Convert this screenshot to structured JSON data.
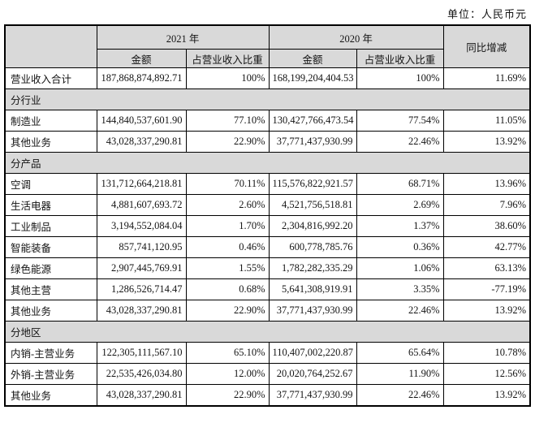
{
  "unit_label": "单位：人民币元",
  "table": {
    "col_headers": {
      "year_2021": "2021 年",
      "year_2020": "2020 年",
      "amount": "金额",
      "proportion": "占营业收入比重",
      "yoy": "同比增减"
    },
    "rows": [
      {
        "type": "data",
        "label": "营业收入合计",
        "a2021": "187,868,874,892.71",
        "p2021": "100%",
        "a2020": "168,199,204,404.53",
        "p2020": "100%",
        "yoy": "11.69%"
      },
      {
        "type": "section",
        "label": "分行业"
      },
      {
        "type": "data",
        "label": "制造业",
        "a2021": "144,840,537,601.90",
        "p2021": "77.10%",
        "a2020": "130,427,766,473.54",
        "p2020": "77.54%",
        "yoy": "11.05%"
      },
      {
        "type": "data",
        "label": "其他业务",
        "a2021": "43,028,337,290.81",
        "p2021": "22.90%",
        "a2020": "37,771,437,930.99",
        "p2020": "22.46%",
        "yoy": "13.92%"
      },
      {
        "type": "section",
        "label": "分产品"
      },
      {
        "type": "data",
        "label": "空调",
        "a2021": "131,712,664,218.81",
        "p2021": "70.11%",
        "a2020": "115,576,822,921.57",
        "p2020": "68.71%",
        "yoy": "13.96%"
      },
      {
        "type": "data",
        "label": "生活电器",
        "a2021": "4,881,607,693.72",
        "p2021": "2.60%",
        "a2020": "4,521,756,518.81",
        "p2020": "2.69%",
        "yoy": "7.96%"
      },
      {
        "type": "data",
        "label": "工业制品",
        "a2021": "3,194,552,084.04",
        "p2021": "1.70%",
        "a2020": "2,304,816,992.20",
        "p2020": "1.37%",
        "yoy": "38.60%"
      },
      {
        "type": "data",
        "label": "智能装备",
        "a2021": "857,741,120.95",
        "p2021": "0.46%",
        "a2020": "600,778,785.76",
        "p2020": "0.36%",
        "yoy": "42.77%"
      },
      {
        "type": "data",
        "label": "绿色能源",
        "a2021": "2,907,445,769.91",
        "p2021": "1.55%",
        "a2020": "1,782,282,335.29",
        "p2020": "1.06%",
        "yoy": "63.13%"
      },
      {
        "type": "data",
        "label": "其他主营",
        "a2021": "1,286,526,714.47",
        "p2021": "0.68%",
        "a2020": "5,641,308,919.91",
        "p2020": "3.35%",
        "yoy": "-77.19%"
      },
      {
        "type": "data",
        "label": "其他业务",
        "a2021": "43,028,337,290.81",
        "p2021": "22.90%",
        "a2020": "37,771,437,930.99",
        "p2020": "22.46%",
        "yoy": "13.92%"
      },
      {
        "type": "section",
        "label": "分地区"
      },
      {
        "type": "data",
        "label": "内销-主营业务",
        "a2021": "122,305,111,567.10",
        "p2021": "65.10%",
        "a2020": "110,407,002,220.87",
        "p2020": "65.64%",
        "yoy": "10.78%"
      },
      {
        "type": "data",
        "label": "外销-主营业务",
        "a2021": "22,535,426,034.80",
        "p2021": "12.00%",
        "a2020": "20,020,764,252.67",
        "p2020": "11.90%",
        "yoy": "12.56%"
      },
      {
        "type": "data",
        "label": "其他业务",
        "a2021": "43,028,337,290.81",
        "p2021": "22.90%",
        "a2020": "37,771,437,930.99",
        "p2020": "22.46%",
        "yoy": "13.92%"
      }
    ]
  }
}
